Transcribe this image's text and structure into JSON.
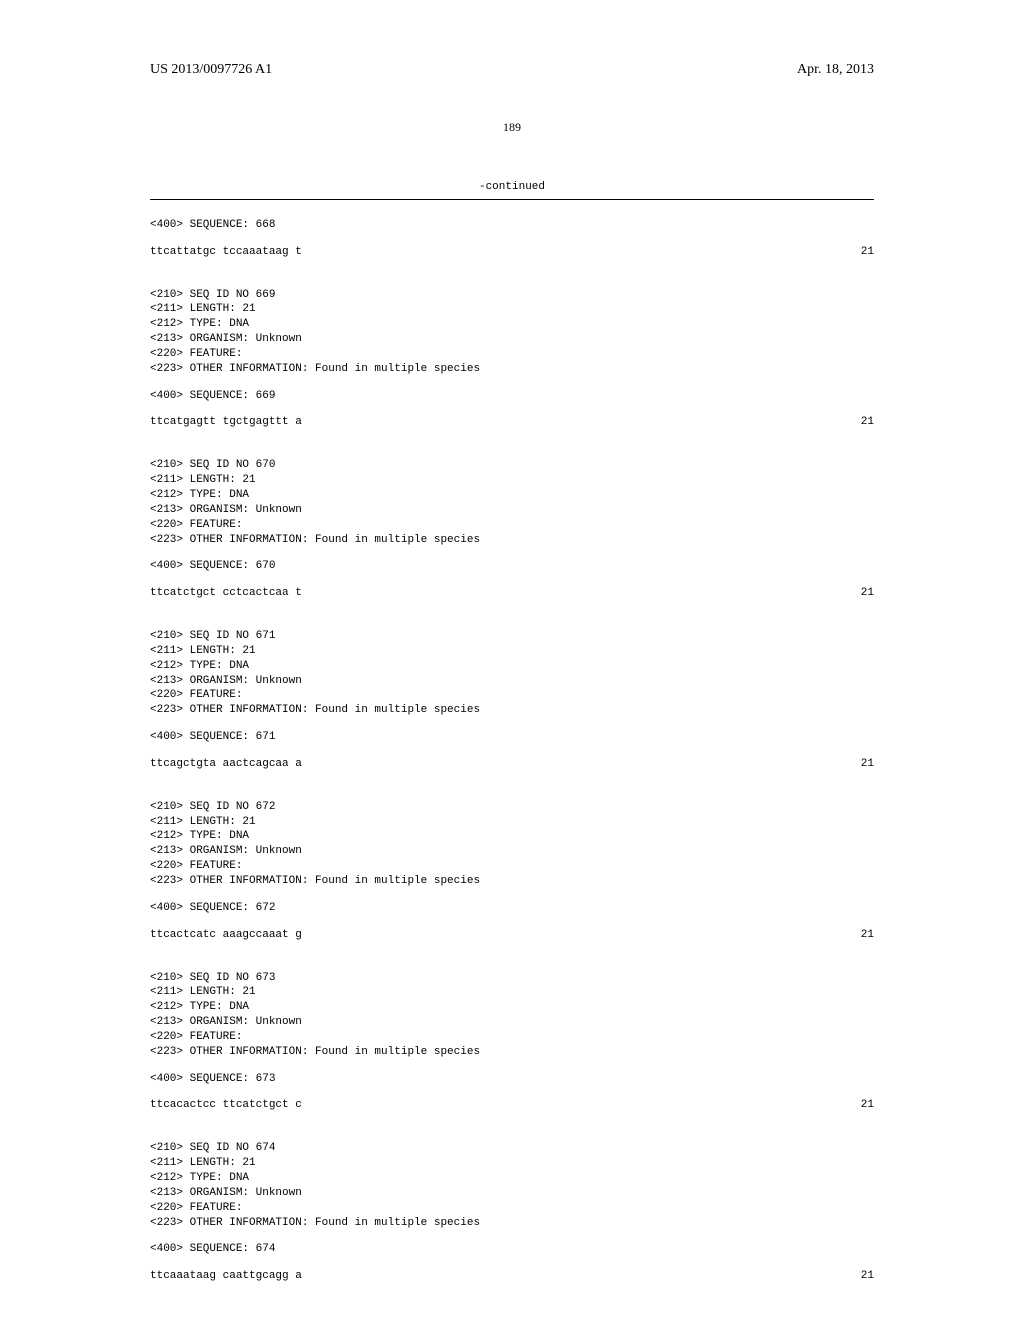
{
  "header": {
    "left": "US 2013/0097726 A1",
    "right": "Apr. 18, 2013"
  },
  "page_number": "189",
  "continued_label": "-continued",
  "sequences": [
    {
      "intro_lines": [
        "<400> SEQUENCE: 668"
      ],
      "seq_data": "ttcattatgc tccaaataag t",
      "seq_len": "21"
    },
    {
      "meta_lines": [
        "<210> SEQ ID NO 669",
        "<211> LENGTH: 21",
        "<212> TYPE: DNA",
        "<213> ORGANISM: Unknown",
        "<220> FEATURE:",
        "<223> OTHER INFORMATION: Found in multiple species"
      ],
      "seq_header": "<400> SEQUENCE: 669",
      "seq_data": "ttcatgagtt tgctgagttt a",
      "seq_len": "21"
    },
    {
      "meta_lines": [
        "<210> SEQ ID NO 670",
        "<211> LENGTH: 21",
        "<212> TYPE: DNA",
        "<213> ORGANISM: Unknown",
        "<220> FEATURE:",
        "<223> OTHER INFORMATION: Found in multiple species"
      ],
      "seq_header": "<400> SEQUENCE: 670",
      "seq_data": "ttcatctgct cctcactcaa t",
      "seq_len": "21"
    },
    {
      "meta_lines": [
        "<210> SEQ ID NO 671",
        "<211> LENGTH: 21",
        "<212> TYPE: DNA",
        "<213> ORGANISM: Unknown",
        "<220> FEATURE:",
        "<223> OTHER INFORMATION: Found in multiple species"
      ],
      "seq_header": "<400> SEQUENCE: 671",
      "seq_data": "ttcagctgta aactcagcaa a",
      "seq_len": "21"
    },
    {
      "meta_lines": [
        "<210> SEQ ID NO 672",
        "<211> LENGTH: 21",
        "<212> TYPE: DNA",
        "<213> ORGANISM: Unknown",
        "<220> FEATURE:",
        "<223> OTHER INFORMATION: Found in multiple species"
      ],
      "seq_header": "<400> SEQUENCE: 672",
      "seq_data": "ttcactcatc aaagccaaat g",
      "seq_len": "21"
    },
    {
      "meta_lines": [
        "<210> SEQ ID NO 673",
        "<211> LENGTH: 21",
        "<212> TYPE: DNA",
        "<213> ORGANISM: Unknown",
        "<220> FEATURE:",
        "<223> OTHER INFORMATION: Found in multiple species"
      ],
      "seq_header": "<400> SEQUENCE: 673",
      "seq_data": "ttcacactcc ttcatctgct c",
      "seq_len": "21"
    },
    {
      "meta_lines": [
        "<210> SEQ ID NO 674",
        "<211> LENGTH: 21",
        "<212> TYPE: DNA",
        "<213> ORGANISM: Unknown",
        "<220> FEATURE:",
        "<223> OTHER INFORMATION: Found in multiple species"
      ],
      "seq_header": "<400> SEQUENCE: 674",
      "seq_data": "ttcaaataag caattgcagg a",
      "seq_len": "21"
    }
  ]
}
